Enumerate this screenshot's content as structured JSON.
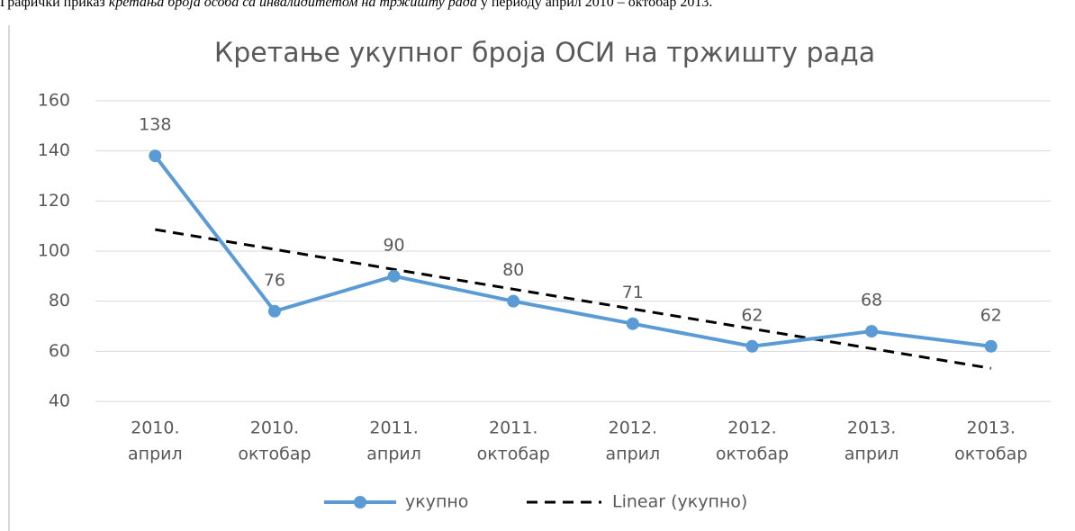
{
  "caption": {
    "lead": "Графички приказ ",
    "italic": "кретања броја особа са инвалидитетом на тржишту рада",
    "tail": " у периоду април 2010 – октобар 2013."
  },
  "chart_data": {
    "type": "line",
    "title": "Кретање укупног броја ОСИ на тржишту рада",
    "categories": [
      [
        "2010.",
        "април"
      ],
      [
        "2010.",
        "октобар"
      ],
      [
        "2011.",
        "април"
      ],
      [
        "2011.",
        "октобар"
      ],
      [
        "2012.",
        "април"
      ],
      [
        "2012.",
        "октобар"
      ],
      [
        "2013.",
        "април"
      ],
      [
        "2013.",
        "октобар"
      ]
    ],
    "series": [
      {
        "name": "укупно",
        "color": "#5b9bd5",
        "values": [
          138,
          76,
          90,
          80,
          71,
          62,
          68,
          62
        ]
      }
    ],
    "trendline": {
      "name": "Linear (укупно)",
      "color": "#000000",
      "values": [
        108.6,
        100.7,
        92.7,
        84.8,
        76.9,
        69.0,
        61.1,
        53.2
      ]
    },
    "ylim": [
      40,
      160
    ],
    "yticks": [
      40,
      60,
      80,
      100,
      120,
      140,
      160
    ],
    "grid": true,
    "legend": "bottom"
  }
}
